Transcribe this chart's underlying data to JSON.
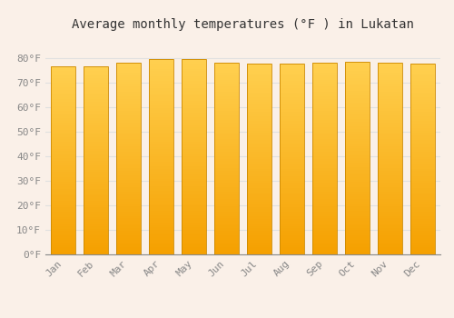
{
  "title": "Average monthly temperatures (°F ) in Lukatan",
  "months": [
    "Jan",
    "Feb",
    "Mar",
    "Apr",
    "May",
    "Jun",
    "Jul",
    "Aug",
    "Sep",
    "Oct",
    "Nov",
    "Dec"
  ],
  "values": [
    76.5,
    76.5,
    78.0,
    79.5,
    79.5,
    78.0,
    77.5,
    77.5,
    78.0,
    78.5,
    78.0,
    77.5
  ],
  "bar_color_bottom": "#F5A000",
  "bar_color_top": "#FFD050",
  "bar_edge_color": "#CC8800",
  "background_color": "#FAF0E8",
  "ylim": [
    0,
    88
  ],
  "yticks": [
    0,
    10,
    20,
    30,
    40,
    50,
    60,
    70,
    80
  ],
  "ytick_labels": [
    "0°F",
    "10°F",
    "20°F",
    "30°F",
    "40°F",
    "50°F",
    "60°F",
    "70°F",
    "80°F"
  ],
  "title_fontsize": 10,
  "tick_fontsize": 8,
  "grid_color": "#E0E0E0",
  "axis_color": "#888888",
  "bar_width": 0.75
}
